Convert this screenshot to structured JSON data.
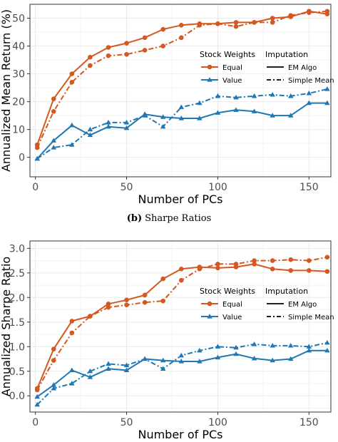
{
  "colors": {
    "equal": "#D4581F",
    "value": "#1F77B4",
    "grid": "#EBEBEB",
    "axis": "#333333"
  },
  "caption": {
    "label": "(b)",
    "text": "Sharpe Ratios"
  },
  "chart_data": [
    {
      "type": "line",
      "id": "return",
      "title": "",
      "xlabel": "Number of PCs",
      "ylabel": "Annualized Mean Return (%)",
      "xlim": [
        -3,
        162
      ],
      "ylim": [
        -7,
        55
      ],
      "xticks": [
        0,
        50,
        100,
        150
      ],
      "yticks": [
        0,
        10,
        20,
        30,
        40,
        50
      ],
      "grid": true,
      "legend": {
        "placement": "top-right-inside",
        "groups": [
          {
            "title": "Stock Weights",
            "entries": [
              "Equal",
              "Value"
            ]
          },
          {
            "title": "Imputation",
            "entries": [
              "EM Algo",
              "Simple Mean"
            ]
          }
        ]
      },
      "x": [
        1,
        10,
        20,
        30,
        40,
        50,
        60,
        70,
        80,
        90,
        100,
        110,
        120,
        130,
        140,
        150,
        160
      ],
      "series": [
        {
          "name": "Equal",
          "imputation": "EM Algo",
          "color": "#D4581F",
          "marker": "circle",
          "dash": "solid",
          "values": [
            4.5,
            21.0,
            30.0,
            36.0,
            39.5,
            41.0,
            43.0,
            46.0,
            47.5,
            48.0,
            48.0,
            48.5,
            48.5,
            50.0,
            50.5,
            52.5,
            51.5
          ]
        },
        {
          "name": "Equal",
          "imputation": "Simple Mean",
          "color": "#D4581F",
          "marker": "circle",
          "dash": "dashdot",
          "values": [
            3.5,
            16.5,
            27.0,
            33.0,
            36.5,
            37.0,
            38.5,
            40.0,
            43.0,
            47.5,
            48.0,
            47.0,
            48.5,
            48.5,
            51.0,
            52.0,
            52.5
          ]
        },
        {
          "name": "Value",
          "imputation": "EM Algo",
          "color": "#1F77B4",
          "marker": "triangle",
          "dash": "solid",
          "values": [
            -0.5,
            6.0,
            11.5,
            8.0,
            11.0,
            10.5,
            15.5,
            14.5,
            14.0,
            14.0,
            16.0,
            17.0,
            16.5,
            15.0,
            15.0,
            19.5,
            19.5
          ]
        },
        {
          "name": "Value",
          "imputation": "Simple Mean",
          "color": "#1F77B4",
          "marker": "triangle",
          "dash": "dashdot",
          "values": [
            -0.5,
            3.5,
            4.5,
            10.0,
            12.5,
            12.5,
            15.0,
            11.0,
            18.0,
            19.5,
            22.0,
            21.5,
            22.0,
            22.5,
            22.0,
            23.0,
            24.5
          ]
        }
      ]
    },
    {
      "type": "line",
      "id": "sharpe",
      "title": "",
      "xlabel": "Number of PCs",
      "ylabel": "Annualized Sharpe Ratio",
      "xlim": [
        -3,
        162
      ],
      "ylim": [
        -0.33,
        3.15
      ],
      "xticks": [
        0,
        50,
        100,
        150
      ],
      "yticks": [
        0.0,
        0.5,
        1.0,
        1.5,
        2.0,
        2.5,
        3.0
      ],
      "ytick_format": "fixed1",
      "grid": true,
      "legend": {
        "placement": "center-right-inside",
        "groups": [
          {
            "title": "Stock Weights",
            "entries": [
              "Equal",
              "Value"
            ]
          },
          {
            "title": "Imputation",
            "entries": [
              "EM Algo",
              "Simple Mean"
            ]
          }
        ]
      },
      "x": [
        1,
        10,
        20,
        30,
        40,
        50,
        60,
        70,
        80,
        90,
        100,
        110,
        120,
        130,
        140,
        150,
        160
      ],
      "series": [
        {
          "name": "Equal",
          "imputation": "EM Algo",
          "color": "#D4581F",
          "marker": "circle",
          "dash": "solid",
          "values": [
            0.15,
            0.95,
            1.52,
            1.62,
            1.87,
            1.95,
            2.05,
            2.38,
            2.58,
            2.62,
            2.6,
            2.62,
            2.68,
            2.58,
            2.55,
            2.55,
            2.53
          ]
        },
        {
          "name": "Equal",
          "imputation": "Simple Mean",
          "color": "#D4581F",
          "marker": "circle",
          "dash": "dashdot",
          "values": [
            0.12,
            0.72,
            1.28,
            1.62,
            1.8,
            1.85,
            1.9,
            1.93,
            2.35,
            2.58,
            2.68,
            2.68,
            2.75,
            2.75,
            2.77,
            2.75,
            2.82
          ]
        },
        {
          "name": "Value",
          "imputation": "EM Algo",
          "color": "#1F77B4",
          "marker": "triangle",
          "dash": "solid",
          "values": [
            -0.02,
            0.22,
            0.52,
            0.38,
            0.55,
            0.52,
            0.75,
            0.72,
            0.7,
            0.7,
            0.78,
            0.85,
            0.76,
            0.72,
            0.75,
            0.92,
            0.92
          ]
        },
        {
          "name": "Value",
          "imputation": "Simple Mean",
          "color": "#1F77B4",
          "marker": "triangle",
          "dash": "dashdot",
          "values": [
            -0.18,
            0.15,
            0.25,
            0.5,
            0.65,
            0.62,
            0.75,
            0.55,
            0.82,
            0.92,
            1.0,
            0.98,
            1.05,
            1.02,
            1.02,
            1.0,
            1.08
          ]
        }
      ]
    }
  ]
}
